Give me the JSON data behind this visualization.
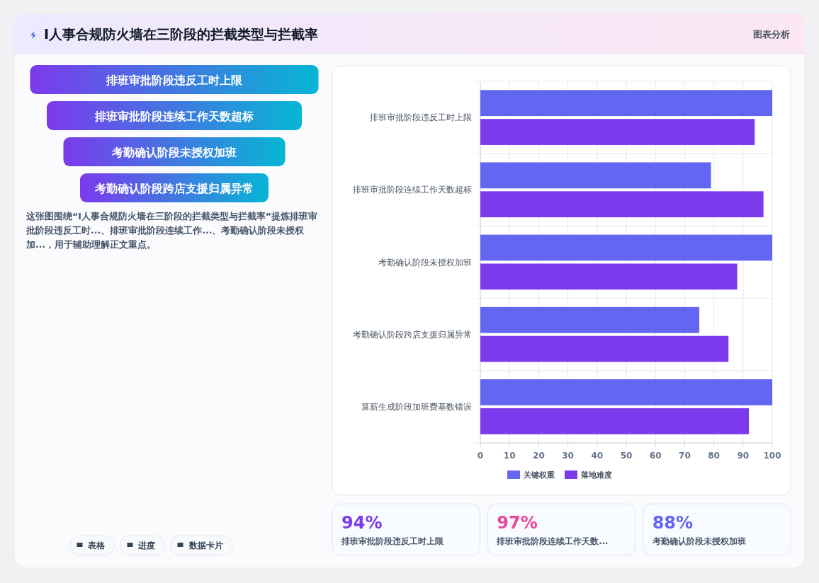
{
  "chart_data": [
    {
      "type": "other",
      "title": "I人事合规防火墙在三阶段的拦截类型与拦截率",
      "categories": [
        "排班审批阶段违反工时上限",
        "排班审批阶段连续工作天数超标",
        "考勤确认阶段未授权加班",
        "考勤确认阶段跨店支援归属异常"
      ],
      "annotations": [
        "图表分析",
        "这张图围绕“I人事合规防火墙在三阶段的拦截类型与拦截率”提炼排班审批阶段违反工时...、排班审批阶段连续工作...、考勤确认阶段未授权加...，用于辅助理解正文重点。",
        "表格",
        "进度",
        "数据卡片"
      ]
    },
    {
      "type": "bar",
      "orientation": "horizontal",
      "categories": [
        "排班审批阶段违反工时上限",
        "排班审批阶段连续工作天数超标",
        "考勤确认阶段未授权加班",
        "考勤确认阶段跨店支援归属异常",
        "算薪生成阶段加班费基数错误"
      ],
      "series": [
        {
          "name": "关键权重",
          "color": "#6366f1",
          "values": [
            100,
            79,
            100,
            75,
            100
          ]
        },
        {
          "name": "落地难度",
          "color": "#7c3aed",
          "values": [
            94,
            97,
            88,
            85,
            92
          ]
        }
      ],
      "xlim": [
        0,
        100
      ],
      "xticks": [
        0,
        10,
        20,
        30,
        40,
        50,
        60,
        70,
        80,
        90,
        100
      ],
      "grid": true,
      "legend": "bottom"
    },
    {
      "type": "other",
      "categories": [
        "排班审批阶段违反工时上限",
        "排班审批阶段连续工作天数...",
        "考勤确认阶段未授权加班"
      ],
      "values": [
        94,
        97,
        88
      ],
      "value_labels": [
        "94%",
        "97%",
        "88%"
      ]
    }
  ]
}
